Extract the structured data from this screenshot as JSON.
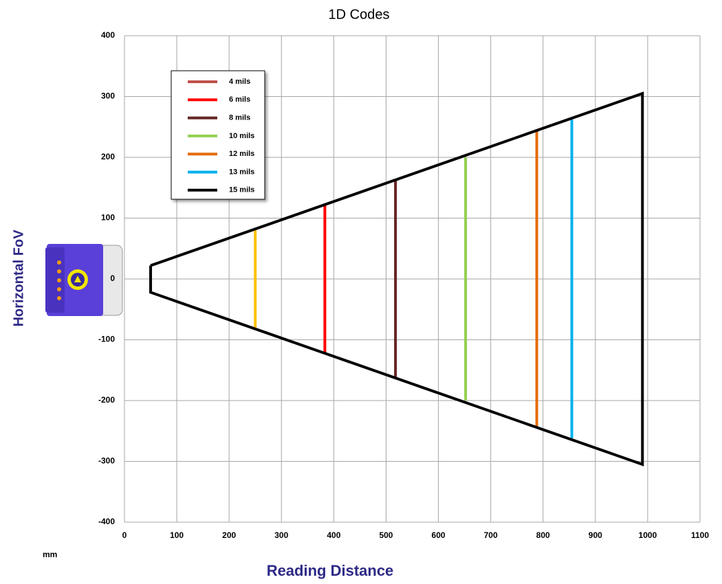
{
  "chart_data": {
    "type": "line",
    "title": "1D Codes",
    "x_label": "Reading Distance",
    "y_label": "Horizontal FoV",
    "unit_note": "mm",
    "xlim": [
      0,
      1100
    ],
    "xticks": [
      0,
      100,
      200,
      300,
      400,
      500,
      600,
      700,
      800,
      900,
      1000,
      1100
    ],
    "ylim": [
      -400,
      400
    ],
    "yticks": [
      -400,
      -300,
      -200,
      -100,
      0,
      100,
      200,
      300,
      400
    ],
    "grid": true,
    "legend": "upper left",
    "series": [
      {
        "name": "4 mils",
        "color": "#c0504d",
        "line_color": "#ffc000",
        "x": [
          250,
          250
        ],
        "values": [
          -80,
          80
        ]
      },
      {
        "name": "6 mils",
        "color": "#ff0000",
        "x": [
          383,
          383
        ],
        "values": [
          -122,
          122
        ]
      },
      {
        "name": "8 mils",
        "color": "#632523",
        "x": [
          518,
          518
        ],
        "values": [
          -162,
          162
        ]
      },
      {
        "name": "10 mils",
        "color": "#92d050",
        "x": [
          652,
          652
        ],
        "values": [
          -200,
          200
        ]
      },
      {
        "name": "12 mils",
        "color": "#e46c0a",
        "x": [
          788,
          788
        ],
        "values": [
          -244,
          244
        ]
      },
      {
        "name": "13 mils",
        "color": "#00b0f0",
        "x": [
          855,
          855
        ],
        "values": [
          -262,
          262
        ]
      },
      {
        "name": "15 mils",
        "color": "#000000",
        "x": [
          50,
          990,
          990,
          50,
          50
        ],
        "values": [
          22,
          305,
          -305,
          -22,
          22
        ]
      }
    ]
  }
}
